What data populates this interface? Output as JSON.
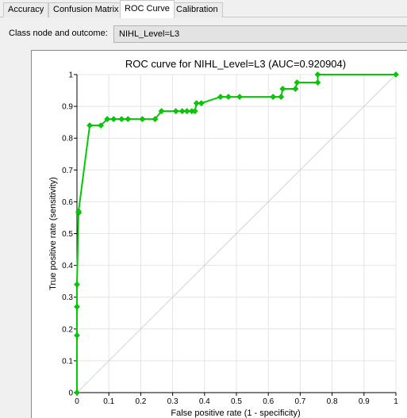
{
  "tabs": [
    {
      "label": "Accuracy",
      "active": false
    },
    {
      "label": "Confusion Matrix",
      "active": false
    },
    {
      "label": "ROC Curve",
      "active": true
    },
    {
      "label": "Calibration",
      "active": false
    }
  ],
  "class_node": {
    "label": "Class node and outcome:",
    "value": "NIHL_Level=L3"
  },
  "chart_data": {
    "type": "line",
    "title": "ROC curve for NIHL_Level=L3 (AUC=0.920904)",
    "xlabel": "False positive rate (1 - specificity)",
    "ylabel": "True positive rate (sensitivity)",
    "xlim": [
      0,
      1
    ],
    "ylim": [
      0,
      1
    ],
    "x_ticks": [
      "0",
      "0.1",
      "0.2",
      "0.3",
      "0.4",
      "0.5",
      "0.6",
      "0.7",
      "0.8",
      "0.9",
      "1"
    ],
    "y_ticks": [
      "0",
      "0.1",
      "0.2",
      "0.3",
      "0.4",
      "0.5",
      "0.6",
      "0.7",
      "0.8",
      "0.9",
      "1"
    ],
    "grid": true,
    "series": [
      {
        "color": "#00cc00",
        "x": [
          0,
          0,
          0,
          0,
          0.005,
          0.005,
          0.04,
          0.075,
          0.095,
          0.115,
          0.14,
          0.16,
          0.205,
          0.245,
          0.265,
          0.31,
          0.33,
          0.345,
          0.36,
          0.37,
          0.375,
          0.39,
          0.45,
          0.475,
          0.51,
          0.615,
          0.64,
          0.645,
          0.685,
          0.69,
          0.755,
          0.755,
          1
        ],
        "y": [
          0,
          0.18,
          0.27,
          0.34,
          0.565,
          0.57,
          0.84,
          0.84,
          0.86,
          0.86,
          0.86,
          0.86,
          0.86,
          0.86,
          0.885,
          0.885,
          0.885,
          0.885,
          0.885,
          0.885,
          0.91,
          0.91,
          0.93,
          0.93,
          0.93,
          0.93,
          0.93,
          0.955,
          0.955,
          0.975,
          0.975,
          1,
          1
        ]
      }
    ],
    "diagonal_color": "#d3d3d3"
  }
}
